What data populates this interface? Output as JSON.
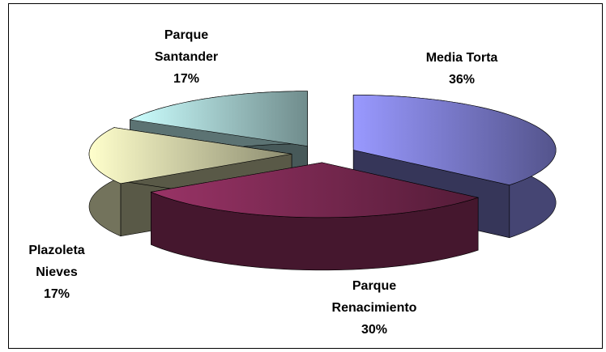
{
  "chart_data": {
    "type": "pie",
    "categories": [
      "Media Torta",
      "Parque\nRenacimiento",
      "Plazoleta\nNieves",
      "Parque\nSantander"
    ],
    "values": [
      36,
      30,
      17,
      17
    ],
    "value_labels": [
      "36%",
      "30%",
      "17%",
      "17%"
    ],
    "colors": [
      "#9999ff",
      "#993366",
      "#ffffcc",
      "#ccffff"
    ]
  }
}
